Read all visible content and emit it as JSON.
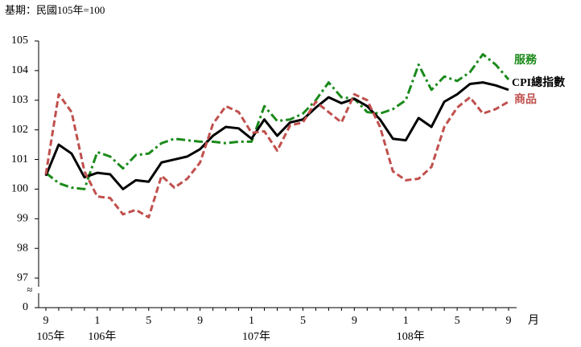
{
  "chart_data": {
    "type": "line",
    "title": "基期：民國105年=100",
    "categories": [
      "9",
      null,
      null,
      null,
      "1",
      null,
      null,
      null,
      "5",
      null,
      null,
      null,
      "9",
      null,
      null,
      null,
      "1",
      null,
      null,
      null,
      "5",
      null,
      null,
      null,
      "9",
      null,
      null,
      null,
      "1",
      null,
      null,
      null,
      "5",
      null,
      null,
      null,
      "9"
    ],
    "category_years": [
      "105年",
      null,
      null,
      null,
      "106年",
      null,
      null,
      null,
      null,
      null,
      null,
      null,
      null,
      null,
      null,
      null,
      "107年",
      null,
      null,
      null,
      null,
      null,
      null,
      null,
      null,
      null,
      null,
      null,
      "108年",
      null,
      null,
      null,
      null,
      null,
      null,
      null,
      null
    ],
    "x_unit": "月",
    "y_break_label": "≈",
    "ylim": [
      0,
      105
    ],
    "yticks": [
      0,
      97,
      98,
      99,
      100,
      101,
      102,
      103,
      104,
      105
    ],
    "series": [
      {
        "name": "服務",
        "color": "#1b8a1b",
        "dash": "11,4,3,4",
        "values": [
          100.55,
          100.2,
          100.05,
          100.0,
          101.25,
          101.1,
          100.7,
          101.15,
          101.2,
          101.55,
          101.7,
          101.65,
          101.6,
          101.6,
          101.55,
          101.6,
          101.6,
          102.8,
          102.3,
          102.35,
          102.55,
          103.0,
          103.6,
          103.1,
          103.05,
          102.6,
          102.55,
          102.7,
          103.0,
          104.2,
          103.35,
          103.8,
          103.65,
          103.95,
          104.55,
          104.2,
          103.7
        ]
      },
      {
        "name": "CPI總指數",
        "color": "#000000",
        "dash": "none",
        "values": [
          100.45,
          101.5,
          101.2,
          100.4,
          100.55,
          100.5,
          100.0,
          100.3,
          100.25,
          100.9,
          101.0,
          101.1,
          101.35,
          101.8,
          102.1,
          102.05,
          101.7,
          102.35,
          101.8,
          102.25,
          102.35,
          102.75,
          103.1,
          102.9,
          103.05,
          102.8,
          102.35,
          101.7,
          101.65,
          102.4,
          102.1,
          102.95,
          103.2,
          103.55,
          103.6,
          103.5,
          103.35
        ]
      },
      {
        "name": "商品",
        "color": "#c0504d",
        "dash": "8,4",
        "values": [
          100.5,
          103.2,
          102.6,
          100.6,
          99.75,
          99.7,
          99.15,
          99.3,
          99.05,
          100.45,
          100.05,
          100.35,
          100.9,
          102.2,
          102.8,
          102.6,
          101.9,
          101.95,
          101.3,
          102.15,
          102.25,
          102.95,
          102.6,
          102.25,
          103.2,
          103.0,
          102.1,
          100.6,
          100.3,
          100.35,
          100.75,
          102.1,
          102.75,
          103.1,
          102.55,
          102.7,
          102.95
        ]
      }
    ]
  }
}
